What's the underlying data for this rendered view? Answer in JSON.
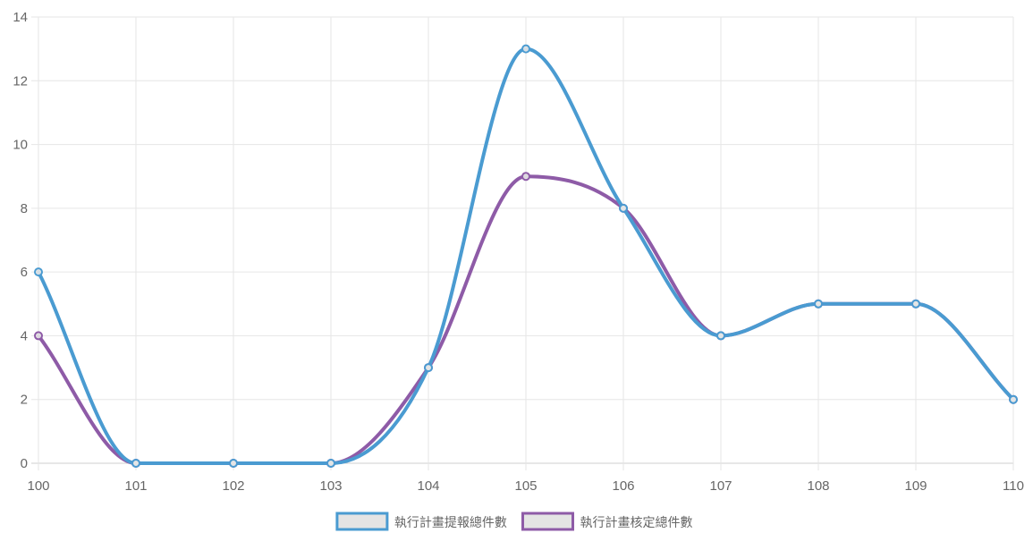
{
  "chart_data": {
    "type": "line",
    "x": [
      "100",
      "101",
      "102",
      "103",
      "104",
      "105",
      "106",
      "107",
      "108",
      "109",
      "110"
    ],
    "ylim": [
      0,
      14
    ],
    "yticks": [
      0,
      2,
      4,
      6,
      8,
      10,
      12,
      14
    ],
    "grid": true,
    "legend_position": "bottom",
    "series": [
      {
        "name": "執行計畫提報總件數",
        "color": "#4a9bd1",
        "values": [
          6,
          0,
          0,
          0,
          3,
          13,
          8,
          4,
          5,
          5,
          2
        ]
      },
      {
        "name": "執行計畫核定總件數",
        "color": "#8e5ba7",
        "values": [
          4,
          0,
          0,
          0,
          3,
          9,
          8,
          4,
          5,
          5,
          2
        ]
      }
    ]
  }
}
